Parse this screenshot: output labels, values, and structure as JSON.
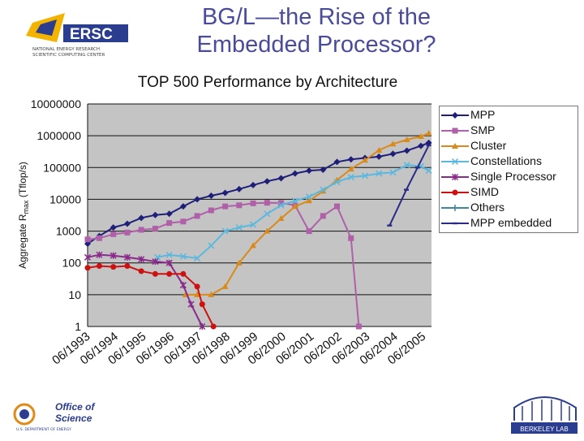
{
  "slide": {
    "title_line1": "BG/L—the Rise of the",
    "title_line2": "Embedded Processor?"
  },
  "logos": {
    "nersc_text": "ERSC",
    "nersc_sub1": "NATIONAL ENERGY RESEARCH",
    "nersc_sub2": "SCIENTIFIC COMPUTING CENTER",
    "doe_line1": "Office of",
    "doe_line2": "Science",
    "doe_line3": "U.S. DEPARTMENT OF ENERGY",
    "lbl_text": "BERKELEY LAB"
  },
  "chart_data": {
    "type": "line",
    "title": "TOP 500 Performance by Architecture",
    "ylabel": "Aggregate R",
    "ylabel_sub": "max",
    "ylabel_unit": " (Tflop/s)",
    "yscale": "log",
    "ylim": [
      1,
      10000000
    ],
    "yticks": [
      "10000000",
      "1000000",
      "100000",
      "10000",
      "1000",
      "100",
      "10",
      "1"
    ],
    "xticks": [
      "06/1993",
      "06/1994",
      "06/1995",
      "06/1996",
      "06/1997",
      "06/1998",
      "06/1999",
      "06/2000",
      "06/2001",
      "06/2002",
      "06/2003",
      "06/2004",
      "06/2005"
    ],
    "x_start": 1993.5,
    "x_end": 2005.8,
    "legend_position": "right",
    "colors": {
      "mpp": "#1f1f7a",
      "smp": "#b060a8",
      "cluster": "#d98a1a",
      "constellations": "#5ab8de",
      "single": "#8a2a8a",
      "simd": "#cc1111",
      "others": "#3a8a9a",
      "mpp_embedded": "#2a2a88",
      "plot_bg": "#c4c4c4"
    },
    "series": [
      {
        "name": "MPP",
        "key": "mpp",
        "marker": "diamond",
        "x": [
          1993.5,
          1993.92,
          1994.42,
          1994.92,
          1995.42,
          1995.92,
          1996.42,
          1996.92,
          1997.42,
          1997.92,
          1998.42,
          1998.92,
          1999.42,
          1999.92,
          2000.42,
          2000.92,
          2001.42,
          2001.92,
          2002.42,
          2002.92,
          2003.42,
          2003.92,
          2004.42,
          2004.92,
          2005.42,
          2005.7
        ],
        "values": [
          400,
          700,
          1300,
          1700,
          2600,
          3200,
          3500,
          6000,
          10000,
          13000,
          16000,
          21000,
          28000,
          37000,
          46000,
          65000,
          80000,
          85000,
          150000,
          180000,
          200000,
          220000,
          270000,
          340000,
          480000,
          600000
        ]
      },
      {
        "name": "SMP",
        "key": "smp",
        "marker": "square",
        "x": [
          1993.5,
          1993.92,
          1994.42,
          1994.92,
          1995.42,
          1995.92,
          1996.42,
          1996.92,
          1997.42,
          1997.92,
          1998.42,
          1998.92,
          1999.42,
          1999.92,
          2000.42,
          2000.92,
          2001.42,
          2001.92,
          2002.42,
          2002.92,
          2003.2
        ],
        "values": [
          550,
          600,
          800,
          900,
          1100,
          1200,
          1800,
          2000,
          3000,
          4500,
          6000,
          6500,
          7500,
          7800,
          7700,
          6500,
          1000,
          3000,
          6000,
          600,
          1
        ]
      },
      {
        "name": "Cluster",
        "key": "cluster",
        "marker": "triangle",
        "x": [
          1997.0,
          1997.42,
          1997.92,
          1998.42,
          1998.92,
          1999.42,
          1999.92,
          2000.42,
          2000.92,
          2001.42,
          2001.92,
          2002.42,
          2002.92,
          2003.42,
          2003.92,
          2004.42,
          2004.92,
          2005.42,
          2005.7
        ],
        "values": [
          10,
          10,
          10,
          18,
          100,
          350,
          1000,
          2500,
          6000,
          9000,
          18000,
          40000,
          90000,
          170000,
          350000,
          550000,
          750000,
          950000,
          1200000
        ]
      },
      {
        "name": "Constellations",
        "key": "constellations",
        "marker": "x",
        "x": [
          1996.0,
          1996.42,
          1996.92,
          1997.42,
          1997.92,
          1998.42,
          1998.92,
          1999.42,
          1999.92,
          2000.42,
          2000.92,
          2001.42,
          2001.92,
          2002.42,
          2002.92,
          2003.42,
          2003.92,
          2004.42,
          2004.92,
          2005.42,
          2005.7
        ],
        "values": [
          150,
          180,
          160,
          140,
          350,
          1000,
          1300,
          1600,
          3500,
          6500,
          9000,
          12000,
          20000,
          35000,
          50000,
          55000,
          65000,
          70000,
          120000,
          110000,
          80000
        ]
      },
      {
        "name": "Single Processor",
        "key": "single",
        "marker": "star",
        "x": [
          1993.5,
          1993.92,
          1994.42,
          1994.92,
          1995.42,
          1995.92,
          1996.42,
          1996.92,
          1997.2,
          1997.6
        ],
        "values": [
          150,
          180,
          170,
          150,
          130,
          110,
          100,
          20,
          5,
          1
        ]
      },
      {
        "name": "SIMD",
        "key": "simd",
        "marker": "circle",
        "x": [
          1993.5,
          1993.92,
          1994.42,
          1994.92,
          1995.42,
          1995.92,
          1996.42,
          1996.92,
          1997.42,
          1997.6,
          1998.0
        ],
        "values": [
          70,
          80,
          75,
          80,
          55,
          45,
          45,
          45,
          18,
          5,
          1
        ]
      },
      {
        "name": "Others",
        "key": "others",
        "marker": "plus",
        "x": [],
        "values": []
      },
      {
        "name": "MPP embedded",
        "key": "mpp_embedded",
        "marker": "dash",
        "x": [
          2004.3,
          2004.9,
          2005.3,
          2005.7
        ],
        "values": [
          1500,
          20000,
          100000,
          500000
        ]
      }
    ]
  }
}
